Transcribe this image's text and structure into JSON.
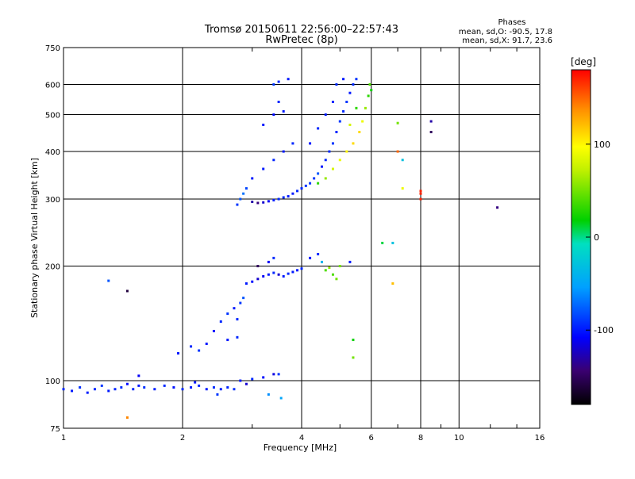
{
  "chart_data": {
    "type": "scatter",
    "title": "Tromsø 20150611 22:56:00–22:57:43",
    "subtitle": "RwPretec (8p)",
    "xlabel": "Frequency [MHz]",
    "ylabel": "Stationary phase Virtual Height [km]",
    "x_scale": "log",
    "y_scale": "log",
    "xlim": [
      1,
      16
    ],
    "ylim": [
      75,
      750
    ],
    "x_ticks": [
      "1",
      "2",
      "4",
      "6",
      "8",
      "10",
      "16"
    ],
    "x_tick_values": [
      1,
      2,
      4,
      6,
      8,
      10,
      16
    ],
    "y_ticks": [
      "75",
      "100",
      "200",
      "300",
      "400",
      "500",
      "600",
      "750"
    ],
    "y_tick_values": [
      75,
      100,
      200,
      300,
      400,
      500,
      600,
      750
    ],
    "grid": true,
    "phases_box": {
      "title": "Phases",
      "line1": "mean, sd,O:  -90.5, 17.8",
      "line2": "mean, sd,X:  91.7, 23.6"
    },
    "colorbar": {
      "label": "deg",
      "range": [
        -180,
        180
      ],
      "ticks": [
        "100",
        "0",
        "-100"
      ],
      "tick_values": [
        100,
        0,
        -100
      ]
    },
    "series": [
      {
        "values": [
          [
            1.0,
            95,
            -95
          ],
          [
            1.05,
            94,
            -100
          ],
          [
            1.1,
            96,
            -92
          ],
          [
            1.15,
            93,
            -98
          ],
          [
            1.2,
            95,
            -95
          ],
          [
            1.25,
            97,
            -90
          ],
          [
            1.3,
            94,
            -100
          ],
          [
            1.35,
            95,
            -96
          ],
          [
            1.4,
            96,
            -93
          ],
          [
            1.45,
            98,
            -105
          ],
          [
            1.5,
            95,
            -95
          ],
          [
            1.55,
            97,
            -100
          ],
          [
            1.6,
            96,
            -92
          ],
          [
            1.7,
            95,
            -98
          ],
          [
            1.8,
            97,
            -95
          ],
          [
            1.9,
            96,
            -102
          ],
          [
            2.0,
            95,
            -94
          ],
          [
            2.1,
            96,
            -98
          ],
          [
            2.2,
            97,
            -95
          ],
          [
            2.3,
            95,
            -100
          ],
          [
            2.4,
            96,
            -93
          ],
          [
            2.5,
            95,
            -97
          ],
          [
            2.6,
            96,
            -96
          ],
          [
            2.7,
            95,
            -92
          ],
          [
            2.45,
            92,
            -90
          ],
          [
            1.55,
            103,
            -110
          ],
          [
            2.15,
            99,
            -100
          ]
        ]
      },
      {
        "values": [
          [
            2.8,
            100,
            -100
          ],
          [
            3.0,
            101,
            -95
          ],
          [
            3.2,
            102,
            -105
          ],
          [
            3.4,
            104,
            -115
          ],
          [
            3.5,
            104,
            -90
          ],
          [
            3.3,
            92,
            -60
          ],
          [
            3.55,
            90,
            -50
          ],
          [
            2.9,
            98,
            -120
          ]
        ]
      },
      {
        "values": [
          [
            1.95,
            118,
            -100
          ],
          [
            2.1,
            123,
            -95
          ],
          [
            2.2,
            120,
            -90
          ],
          [
            2.3,
            125,
            -100
          ],
          [
            2.4,
            135,
            -100
          ],
          [
            2.5,
            143,
            -95
          ],
          [
            2.6,
            150,
            -90
          ],
          [
            2.7,
            155,
            -100
          ],
          [
            2.75,
            145,
            -95
          ],
          [
            2.8,
            160,
            -90
          ],
          [
            2.85,
            165,
            -80
          ],
          [
            2.6,
            128,
            -100
          ],
          [
            2.75,
            130,
            -95
          ]
        ]
      },
      {
        "values": [
          [
            2.9,
            180,
            -100
          ],
          [
            3.0,
            182,
            -105
          ],
          [
            3.1,
            185,
            -120
          ],
          [
            3.2,
            188,
            -110
          ],
          [
            3.3,
            190,
            -100
          ],
          [
            3.4,
            192,
            -95
          ],
          [
            3.5,
            190,
            -120
          ],
          [
            3.6,
            188,
            -100
          ],
          [
            3.7,
            191,
            -95
          ],
          [
            3.8,
            193,
            -100
          ],
          [
            3.9,
            195,
            -100
          ],
          [
            4.0,
            197,
            -95
          ],
          [
            3.1,
            200,
            -150
          ],
          [
            3.3,
            205,
            -110
          ],
          [
            4.2,
            210,
            -100
          ],
          [
            4.4,
            215,
            -95
          ],
          [
            4.5,
            205,
            -40
          ],
          [
            4.6,
            195,
            40
          ],
          [
            4.7,
            198,
            60
          ],
          [
            4.8,
            190,
            40
          ],
          [
            4.9,
            185,
            50
          ],
          [
            5.0,
            200,
            50
          ],
          [
            5.3,
            205,
            -100
          ],
          [
            3.4,
            210,
            -95
          ]
        ]
      },
      {
        "values": [
          [
            2.75,
            290,
            -90
          ],
          [
            2.8,
            300,
            -80
          ],
          [
            2.85,
            310,
            -70
          ],
          [
            2.9,
            320,
            -85
          ],
          [
            3.0,
            295,
            -130
          ],
          [
            3.1,
            293,
            -140
          ],
          [
            3.2,
            294,
            -120
          ],
          [
            3.3,
            296,
            -110
          ],
          [
            3.4,
            298,
            -100
          ],
          [
            3.5,
            300,
            -95
          ],
          [
            3.6,
            303,
            -95
          ],
          [
            3.7,
            305,
            -100
          ],
          [
            3.8,
            310,
            -100
          ],
          [
            3.9,
            315,
            -95
          ],
          [
            4.0,
            320,
            -95
          ],
          [
            4.1,
            325,
            -90
          ],
          [
            4.2,
            330,
            -90
          ],
          [
            4.3,
            340,
            -90
          ],
          [
            4.4,
            350,
            -80
          ],
          [
            4.5,
            365,
            -100
          ],
          [
            4.6,
            380,
            -95
          ],
          [
            4.7,
            400,
            -95
          ],
          [
            4.8,
            420,
            -90
          ],
          [
            4.9,
            450,
            -95
          ],
          [
            5.0,
            480,
            -90
          ],
          [
            5.1,
            510,
            -95
          ],
          [
            5.2,
            540,
            -90
          ],
          [
            5.3,
            570,
            -100
          ],
          [
            5.4,
            600,
            -95
          ],
          [
            5.5,
            620,
            -90
          ]
        ]
      },
      {
        "values": [
          [
            4.4,
            330,
            30
          ],
          [
            4.6,
            340,
            60
          ],
          [
            4.8,
            360,
            80
          ],
          [
            5.0,
            380,
            90
          ],
          [
            5.2,
            400,
            100
          ],
          [
            5.4,
            420,
            110
          ],
          [
            5.6,
            450,
            110
          ],
          [
            5.7,
            480,
            90
          ],
          [
            5.8,
            520,
            60
          ],
          [
            5.9,
            560,
            30
          ],
          [
            5.95,
            600,
            40
          ],
          [
            6.0,
            580,
            20
          ],
          [
            5.5,
            520,
            30
          ],
          [
            5.3,
            470,
            80
          ]
        ]
      },
      {
        "values": [
          [
            3.0,
            340,
            -100
          ],
          [
            3.2,
            360,
            -100
          ],
          [
            3.4,
            380,
            -95
          ],
          [
            3.6,
            400,
            -100
          ],
          [
            3.8,
            420,
            -95
          ],
          [
            3.2,
            470,
            -100
          ],
          [
            3.4,
            500,
            -105
          ],
          [
            3.6,
            510,
            -100
          ],
          [
            3.5,
            540,
            -95
          ],
          [
            3.4,
            600,
            -90
          ],
          [
            3.5,
            610,
            -95
          ],
          [
            3.7,
            620,
            -100
          ],
          [
            4.2,
            420,
            -100
          ],
          [
            4.4,
            460,
            -95
          ],
          [
            4.6,
            500,
            -100
          ],
          [
            4.8,
            540,
            -95
          ],
          [
            4.9,
            600,
            -95
          ],
          [
            5.1,
            620,
            -100
          ]
        ]
      },
      {
        "values": [
          [
            6.4,
            230,
            10
          ],
          [
            6.8,
            230,
            -30
          ],
          [
            6.8,
            180,
            120
          ],
          [
            7.0,
            475,
            50
          ],
          [
            7.0,
            400,
            150
          ],
          [
            7.2,
            380,
            -30
          ],
          [
            7.2,
            320,
            90
          ],
          [
            8.0,
            315,
            170
          ],
          [
            8.0,
            310,
            170
          ],
          [
            8.0,
            300,
            170
          ],
          [
            8.5,
            480,
            -130
          ],
          [
            8.5,
            450,
            -150
          ],
          [
            12.5,
            285,
            -140
          ],
          [
            1.3,
            183,
            -80
          ],
          [
            1.45,
            172,
            -160
          ],
          [
            1.45,
            80,
            140
          ],
          [
            5.4,
            115,
            50
          ],
          [
            5.4,
            128,
            20
          ]
        ]
      }
    ]
  }
}
